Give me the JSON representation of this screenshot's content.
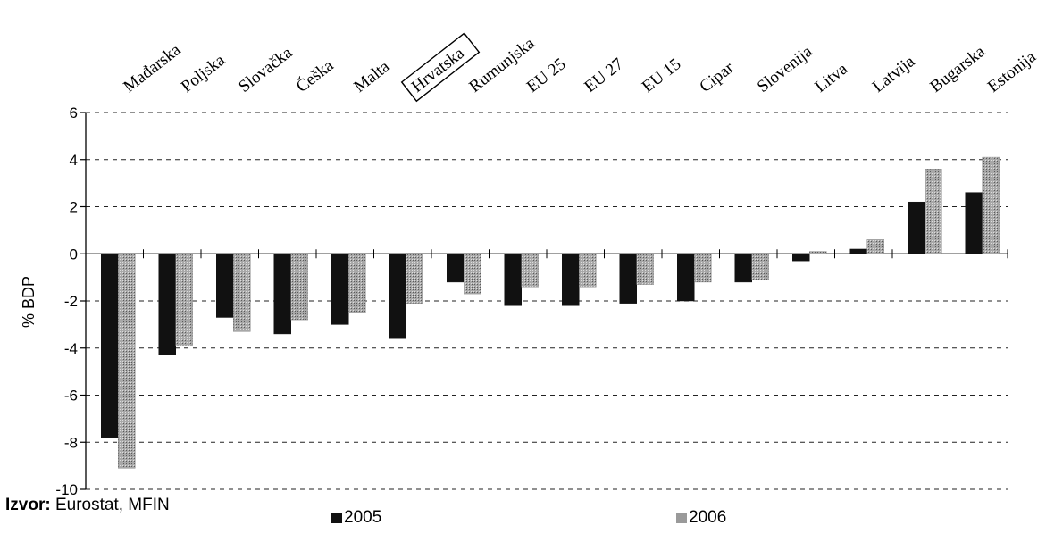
{
  "source": {
    "label": "Izvor:",
    "text": "Eurostat, MFIN"
  },
  "chart_data": {
    "type": "bar",
    "categories": [
      "Mađarska",
      "Poljska",
      "Slovačka",
      "Češka",
      "Malta",
      "Hrvatska",
      "Rumunjska",
      "EU 25",
      "EU 27",
      "EU 15",
      "Cipar",
      "Slovenija",
      "Litva",
      "Latvija",
      "Bugarska",
      "Estonija"
    ],
    "highlighted_category": "Hrvatska",
    "series": [
      {
        "name": "2005",
        "color": "#111111",
        "values": [
          -7.8,
          -4.3,
          -2.7,
          -3.4,
          -3.0,
          -3.6,
          -1.2,
          -2.2,
          -2.2,
          -2.1,
          -2.0,
          -1.2,
          -0.3,
          0.2,
          2.2,
          2.6
        ]
      },
      {
        "name": "2006",
        "color": "#9a9a9a",
        "values": [
          -9.1,
          -3.9,
          -3.3,
          -2.8,
          -2.5,
          -2.1,
          -1.7,
          -1.4,
          -1.4,
          -1.3,
          -1.2,
          -1.1,
          0.1,
          0.6,
          3.6,
          4.1
        ]
      }
    ],
    "xlabel": "",
    "ylabel": "% BDP",
    "ylim": [
      -10,
      6
    ],
    "yticks": [
      "6",
      "4",
      "2",
      "0",
      "-2",
      "-4",
      "-6",
      "-8",
      "-10"
    ],
    "grid": "dashed horizontal",
    "legend": "bottom-center"
  }
}
